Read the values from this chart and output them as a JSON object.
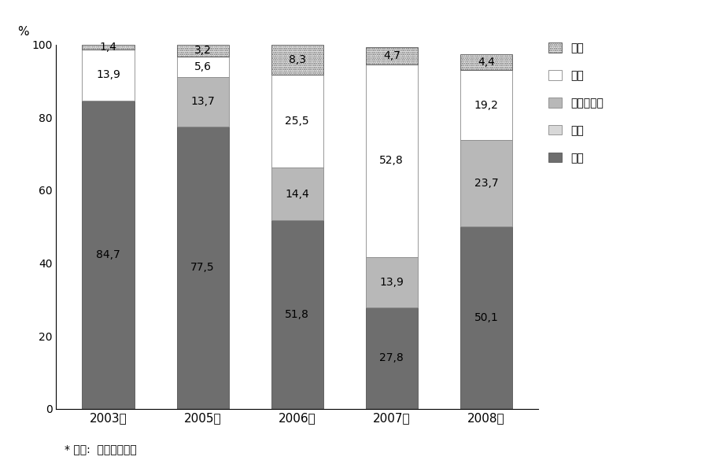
{
  "years": [
    "2003년",
    "2005년",
    "2006년",
    "2007년",
    "2008년"
  ],
  "series_order": [
    "중국",
    "남아프리카",
    "호주",
    "인도",
    "기타"
  ],
  "series": {
    "중국": [
      84.7,
      77.5,
      51.8,
      27.8,
      50.1
    ],
    "남아프리카": [
      0.0,
      13.7,
      14.4,
      13.9,
      23.7
    ],
    "호주": [
      0.0,
      0.0,
      0.0,
      0.0,
      0.0
    ],
    "인도": [
      13.9,
      5.6,
      25.5,
      52.8,
      19.2
    ],
    "기타": [
      1.4,
      3.2,
      8.3,
      4.7,
      4.4
    ]
  },
  "color_map": {
    "중국": "#6e6e6e",
    "남아프리카": "#b8b8b8",
    "호주": "#d8d8d8",
    "인도": "#ffffff",
    "기타": "#ffffff"
  },
  "hatch_map": {
    "중국": "",
    "남아프리카": "",
    "호주": "",
    "인도": "",
    "기타": "......."
  },
  "edge_map": {
    "중국": "#555555",
    "남아프리카": "#888888",
    "호주": "#888888",
    "인도": "#888888",
    "기타": "#555555"
  },
  "legend_order": [
    "기타",
    "인도",
    "남아프리카",
    "호주",
    "중국"
  ],
  "ylabel": "%",
  "ylim": [
    0,
    100
  ],
  "bar_width": 0.55,
  "source_text": "* 자료:  한국무역협회",
  "background_color": "#ffffff"
}
